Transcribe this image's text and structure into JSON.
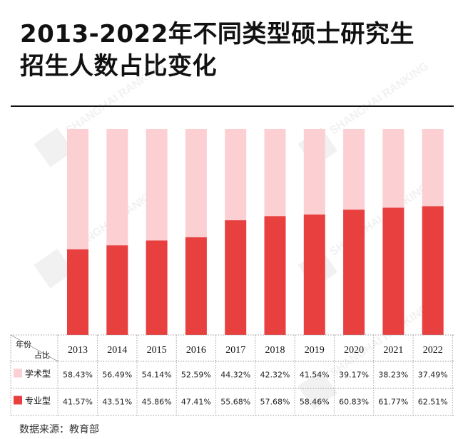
{
  "title_line1": "2013-2022年不同类型硕士研究生",
  "title_line2": "招生人数占比变化",
  "source": "数据来源：教育部",
  "watermark": "SHANGHAI RANKING",
  "table": {
    "header_top": "年份",
    "header_bottom": "占比"
  },
  "colors": {
    "academic": "#fccfd3",
    "professional": "#e8403f"
  },
  "chart_data": {
    "type": "bar",
    "stacked": true,
    "percent_stacked": true,
    "categories": [
      "2013",
      "2014",
      "2015",
      "2016",
      "2017",
      "2018",
      "2019",
      "2020",
      "2021",
      "2022"
    ],
    "series": [
      {
        "name": "学术型",
        "color": "#fccfd3",
        "values": [
          58.43,
          56.49,
          54.14,
          52.59,
          44.32,
          42.32,
          41.54,
          39.17,
          38.23,
          37.49
        ],
        "labels": [
          "58.43%",
          "56.49%",
          "54.14%",
          "52.59%",
          "44.32%",
          "42.32%",
          "41.54%",
          "39.17%",
          "38.23%",
          "37.49%"
        ]
      },
      {
        "name": "专业型",
        "color": "#e8403f",
        "values": [
          41.57,
          43.51,
          45.86,
          47.41,
          55.68,
          57.68,
          58.46,
          60.83,
          61.77,
          62.51
        ],
        "labels": [
          "41.57%",
          "43.51%",
          "45.86%",
          "47.41%",
          "55.68%",
          "57.68%",
          "58.46%",
          "60.83%",
          "61.77%",
          "62.51%"
        ]
      }
    ],
    "ylim": [
      0,
      100
    ],
    "grid": false,
    "legend": "data-table"
  }
}
